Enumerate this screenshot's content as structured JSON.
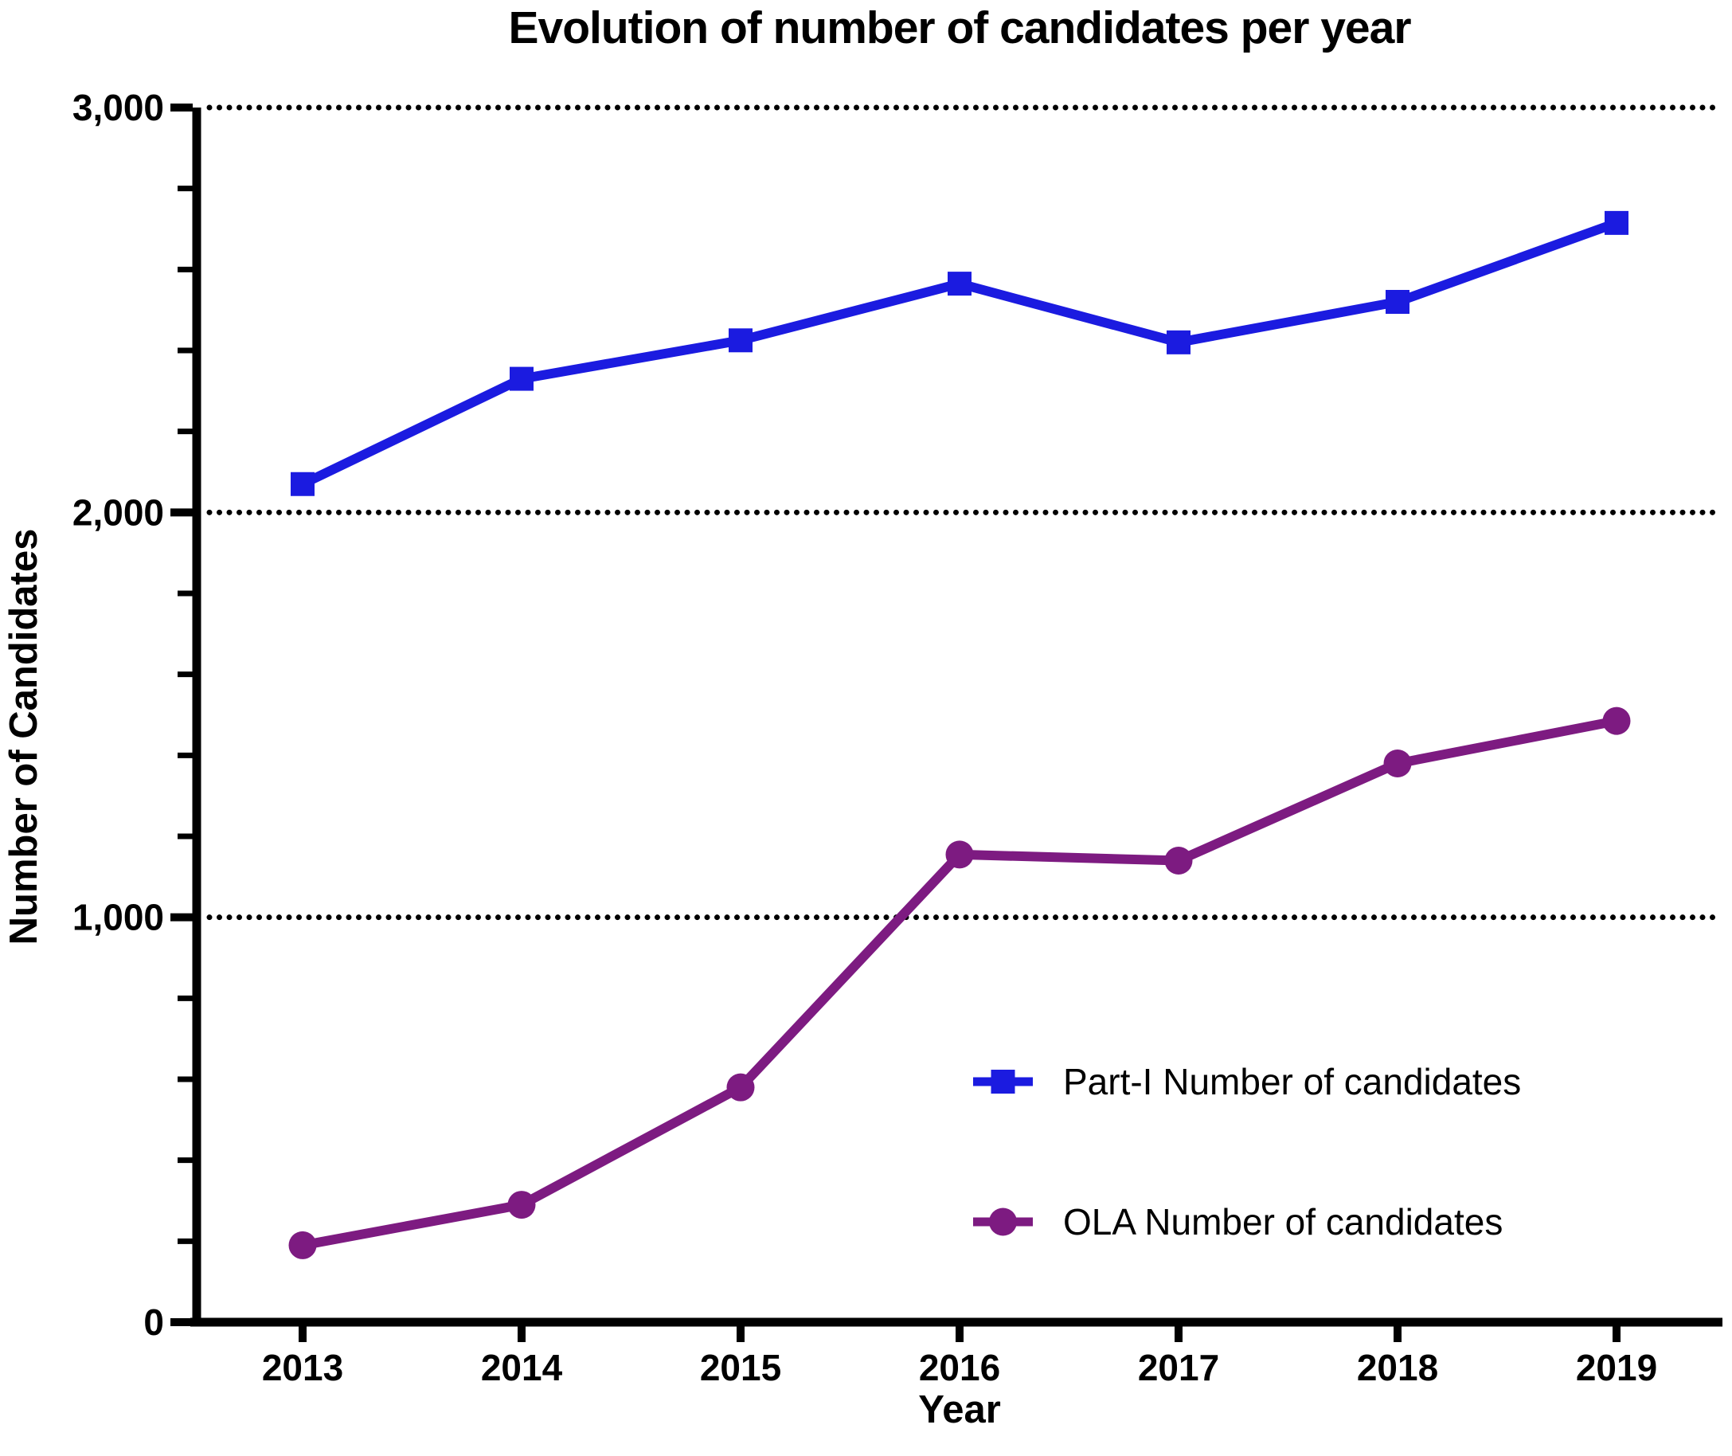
{
  "chart_data": {
    "type": "line",
    "title": "Evolution of number of candidates per year",
    "xlabel": "Year",
    "ylabel": "Number of Candidates",
    "categories": [
      "2013",
      "2014",
      "2015",
      "2016",
      "2017",
      "2018",
      "2019"
    ],
    "ylim": [
      0,
      3000
    ],
    "y_major_ticks": [
      0,
      1000,
      2000,
      3000
    ],
    "y_tick_labels": [
      "0",
      "1,000",
      "2,000",
      "3,000"
    ],
    "y_minor_tick_interval": 200,
    "gridlines": {
      "style": "dotted",
      "color": "#000000",
      "at": [
        1000,
        2000,
        3000
      ]
    },
    "legend_position": "inside-bottom-right",
    "series": [
      {
        "name": "Part-I Number of candidates",
        "color": "#1b1be0",
        "marker": "square",
        "values": [
          2070,
          2330,
          2425,
          2565,
          2420,
          2520,
          2715
        ]
      },
      {
        "name": "OLA Number of candidates",
        "color": "#7d1b81",
        "marker": "circle",
        "values": [
          190,
          290,
          580,
          1155,
          1140,
          1380,
          1485
        ]
      }
    ]
  }
}
